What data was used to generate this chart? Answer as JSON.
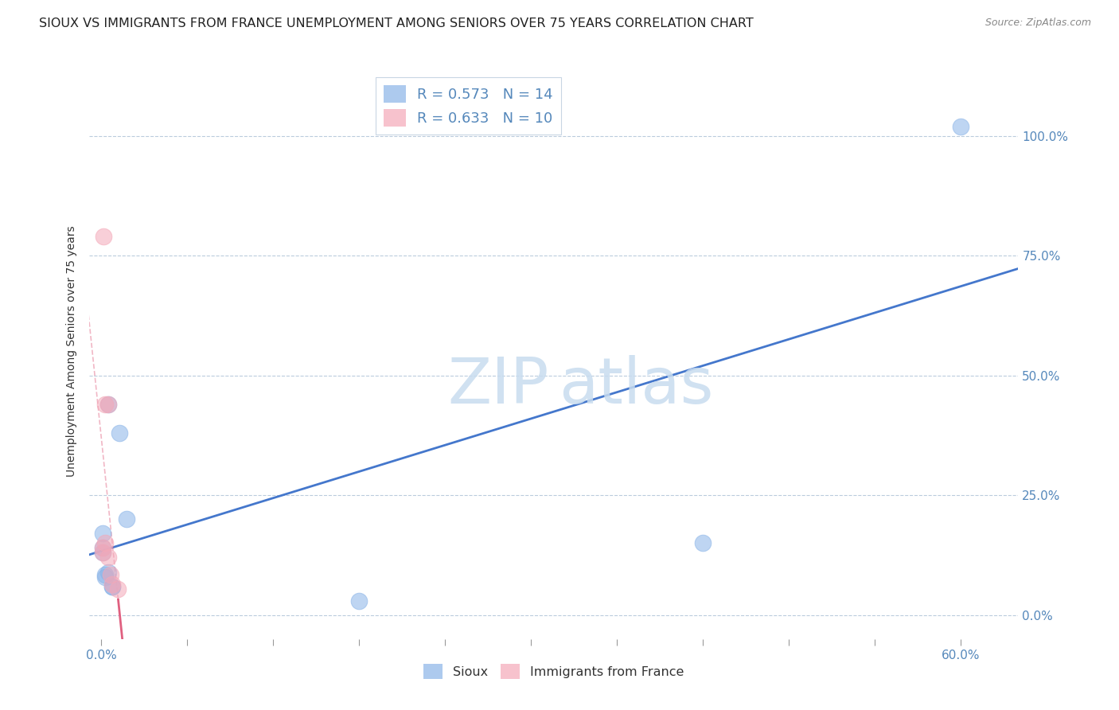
{
  "title": "SIOUX VS IMMIGRANTS FROM FRANCE UNEMPLOYMENT AMONG SENIORS OVER 75 YEARS CORRELATION CHART",
  "source": "Source: ZipAtlas.com",
  "ylabel": "Unemployment Among Seniors over 75 years",
  "xlim": [
    -0.008,
    0.64
  ],
  "ylim": [
    -0.05,
    1.15
  ],
  "xticks": [
    0.0,
    0.06,
    0.12,
    0.18,
    0.24,
    0.3,
    0.36,
    0.42,
    0.48,
    0.54,
    0.6
  ],
  "xtick_labels_show": [
    "0.0%",
    "",
    "",
    "",
    "",
    "",
    "",
    "",
    "",
    "",
    "60.0%"
  ],
  "ytick_vals": [
    0.0,
    0.25,
    0.5,
    0.75,
    1.0
  ],
  "ytick_labels": [
    "0.0%",
    "25.0%",
    "50.0%",
    "75.0%",
    "100.0%"
  ],
  "sioux_x": [
    0.001,
    0.001,
    0.001,
    0.003,
    0.003,
    0.005,
    0.005,
    0.008,
    0.008,
    0.013,
    0.018,
    0.18,
    0.42,
    0.6
  ],
  "sioux_y": [
    0.17,
    0.13,
    0.14,
    0.08,
    0.085,
    0.44,
    0.09,
    0.06,
    0.06,
    0.38,
    0.2,
    0.03,
    0.15,
    1.02
  ],
  "france_x": [
    0.001,
    0.001,
    0.002,
    0.003,
    0.003,
    0.005,
    0.005,
    0.007,
    0.008,
    0.012
  ],
  "france_y": [
    0.13,
    0.14,
    0.79,
    0.44,
    0.15,
    0.44,
    0.12,
    0.085,
    0.065,
    0.055
  ],
  "sioux_R": 0.573,
  "sioux_N": 14,
  "france_R": 0.633,
  "france_N": 10,
  "blue_color": "#8ab4e8",
  "pink_color": "#f4a8b8",
  "blue_line_color": "#4477CC",
  "pink_line_color": "#E06080",
  "axis_color": "#5588BB",
  "grid_color": "#BBCCDD",
  "background_color": "#FFFFFF",
  "title_fontsize": 11.5,
  "axis_label_fontsize": 10,
  "tick_fontsize": 11,
  "legend_fontsize": 13,
  "marker_size": 220
}
